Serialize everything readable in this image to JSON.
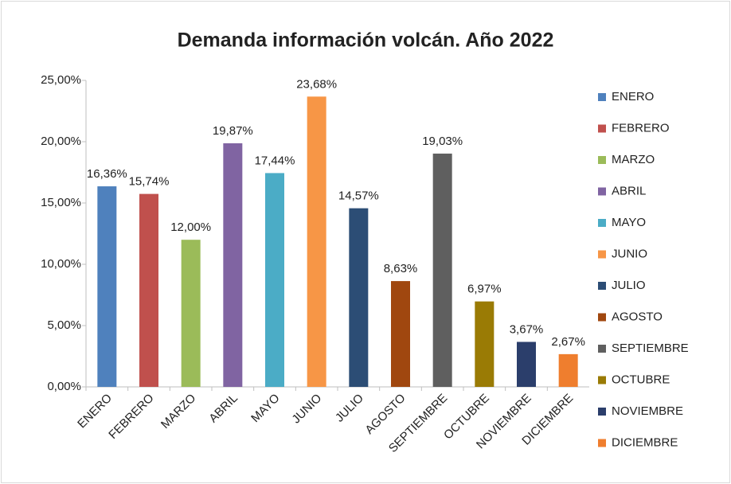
{
  "chart_data": {
    "type": "bar",
    "title": "Demanda información volcán. Año 2022",
    "categories": [
      "ENERO",
      "FEBRERO",
      "MARZO",
      "ABRIL",
      "MAYO",
      "JUNIO",
      "JULIO",
      "AGOSTO",
      "SEPTIEMBRE",
      "OCTUBRE",
      "NOVIEMBRE",
      "DICIEMBRE"
    ],
    "values": [
      16.36,
      15.74,
      12.0,
      19.87,
      17.44,
      23.68,
      14.57,
      8.63,
      19.03,
      6.97,
      3.67,
      2.67
    ],
    "value_labels": [
      "16,36%",
      "15,74%",
      "12,00%",
      "19,87%",
      "17,44%",
      "23,68%",
      "14,57%",
      "8,63%",
      "19,03%",
      "6,97%",
      "3,67%",
      "2,67%"
    ],
    "colors": [
      "#4f81bd",
      "#c0504d",
      "#9bbb59",
      "#8064a2",
      "#4bacc6",
      "#f79646",
      "#2c4d75",
      "#a0470f",
      "#5f5f5f",
      "#9a7b05",
      "#2b3e6b",
      "#ef7e2e"
    ],
    "ylim": [
      0,
      25
    ],
    "yticks": [
      {
        "value": 0,
        "label": "0,00%"
      },
      {
        "value": 5,
        "label": "5,00%"
      },
      {
        "value": 10,
        "label": "10,00%"
      },
      {
        "value": 15,
        "label": "15,00%"
      },
      {
        "value": 20,
        "label": "20,00%"
      },
      {
        "value": 25,
        "label": "25,00%"
      }
    ],
    "grid": false,
    "legend": "right"
  }
}
